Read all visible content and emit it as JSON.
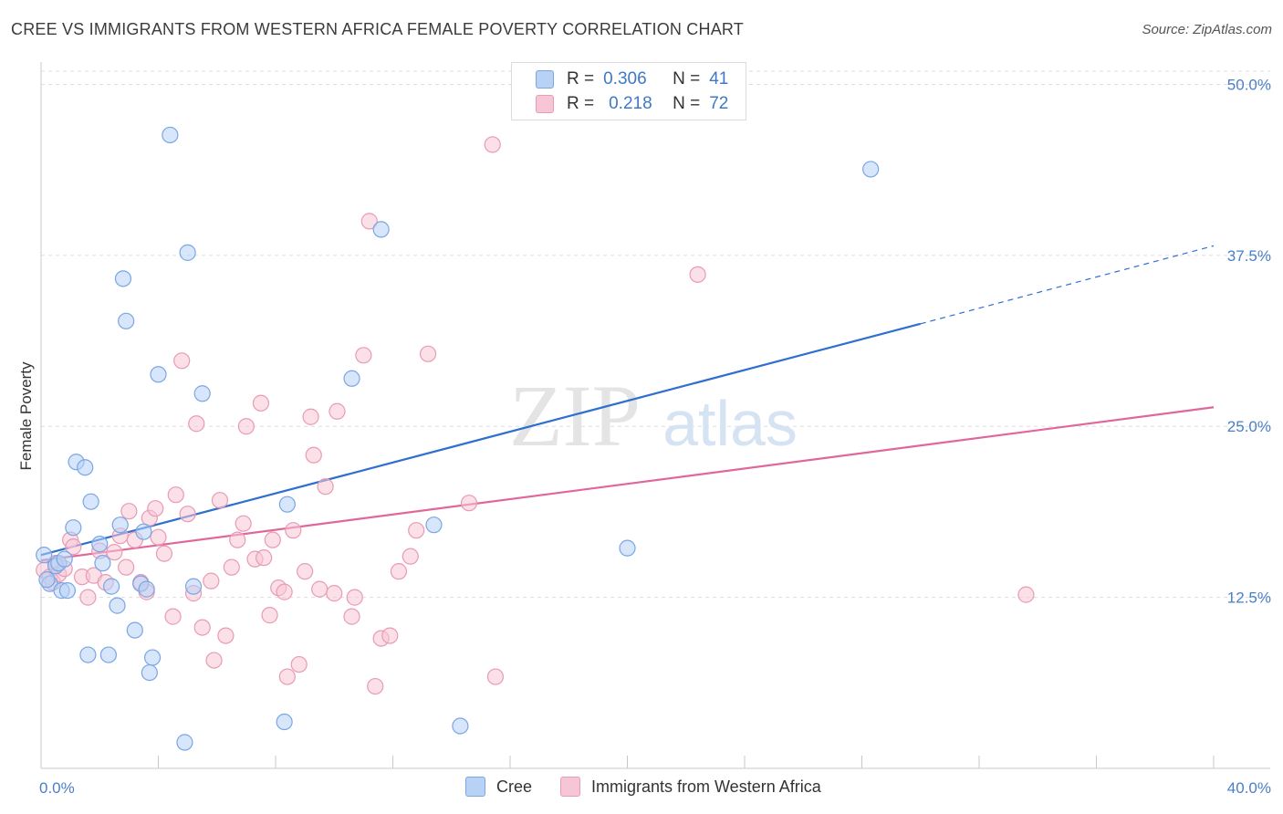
{
  "title": "CREE VS IMMIGRANTS FROM WESTERN AFRICA FEMALE POVERTY CORRELATION CHART",
  "source": "Source: ZipAtlas.com",
  "watermark": {
    "zip": "ZIP",
    "atlas": "atlas"
  },
  "legend": {
    "rows": [
      {
        "r_label": "R =",
        "r_value": "0.306",
        "n_label": "N =",
        "n_value": "41"
      },
      {
        "r_label": "R =",
        "r_value": "0.218",
        "n_label": "N =",
        "n_value": "72"
      }
    ]
  },
  "colors": {
    "cree_fill": "#b7d2f5",
    "cree_stroke": "#7aa6e3",
    "cree_line": "#2f6fcf",
    "waf_fill": "#f7c6d6",
    "waf_stroke": "#e99ab5",
    "waf_line": "#e0679a",
    "tick_text": "#4a7fc8",
    "grid": "#dddddd"
  },
  "chart_data": {
    "type": "scatter",
    "ylabel": "Female Poverty",
    "xlim": [
      0,
      40
    ],
    "ylim": [
      0,
      51.5
    ],
    "x_tick_labels": [
      "0.0%",
      "40.0%"
    ],
    "y_ticks": [
      12.5,
      25.0,
      37.5,
      50.0
    ],
    "y_tick_labels": [
      "12.5%",
      "25.0%",
      "37.5%",
      "50.0%"
    ],
    "grid": true,
    "series": [
      {
        "name": "Cree",
        "trend": {
          "x0": 0,
          "y0": 15.6,
          "x1": 30.0,
          "y1": 32.5,
          "dashed_to_x": 40,
          "dashed_to_y": 38.2
        },
        "points": [
          [
            0.1,
            15.6
          ],
          [
            0.3,
            13.5
          ],
          [
            0.5,
            14.8
          ],
          [
            0.6,
            15.0
          ],
          [
            0.7,
            13.0
          ],
          [
            0.8,
            15.3
          ],
          [
            0.9,
            13.0
          ],
          [
            1.1,
            17.6
          ],
          [
            1.2,
            22.4
          ],
          [
            1.5,
            22.0
          ],
          [
            1.7,
            19.5
          ],
          [
            2.0,
            16.4
          ],
          [
            2.1,
            15.0
          ],
          [
            2.4,
            13.3
          ],
          [
            2.6,
            11.9
          ],
          [
            2.7,
            17.8
          ],
          [
            2.8,
            35.8
          ],
          [
            2.9,
            32.7
          ],
          [
            3.2,
            10.1
          ],
          [
            3.4,
            13.5
          ],
          [
            3.5,
            17.3
          ],
          [
            3.6,
            13.1
          ],
          [
            3.8,
            8.1
          ],
          [
            4.0,
            28.8
          ],
          [
            4.4,
            46.3
          ],
          [
            4.9,
            1.9
          ],
          [
            5.0,
            37.7
          ],
          [
            5.2,
            13.3
          ],
          [
            5.5,
            27.4
          ],
          [
            1.6,
            8.3
          ],
          [
            2.3,
            8.3
          ],
          [
            3.7,
            7.0
          ],
          [
            8.3,
            3.4
          ],
          [
            8.4,
            19.3
          ],
          [
            10.6,
            28.5
          ],
          [
            11.6,
            39.4
          ],
          [
            13.4,
            17.8
          ],
          [
            14.3,
            3.1
          ],
          [
            20.0,
            16.1
          ],
          [
            28.3,
            43.8
          ],
          [
            0.2,
            13.8
          ]
        ]
      },
      {
        "name": "Immigrants from Western Africa",
        "trend": {
          "x0": 0,
          "y0": 15.2,
          "x1": 40,
          "y1": 26.4
        },
        "points": [
          [
            0.1,
            14.5
          ],
          [
            0.3,
            14.0
          ],
          [
            0.4,
            13.6
          ],
          [
            0.5,
            15.0
          ],
          [
            0.6,
            14.2
          ],
          [
            0.8,
            14.6
          ],
          [
            1.0,
            16.7
          ],
          [
            1.1,
            16.2
          ],
          [
            1.4,
            14.0
          ],
          [
            1.6,
            12.5
          ],
          [
            1.8,
            14.1
          ],
          [
            2.0,
            15.9
          ],
          [
            2.2,
            13.6
          ],
          [
            2.5,
            15.8
          ],
          [
            2.7,
            17.0
          ],
          [
            2.9,
            14.7
          ],
          [
            3.0,
            18.8
          ],
          [
            3.2,
            16.7
          ],
          [
            3.4,
            13.6
          ],
          [
            3.6,
            12.9
          ],
          [
            3.7,
            18.3
          ],
          [
            3.9,
            19.0
          ],
          [
            4.0,
            16.9
          ],
          [
            4.2,
            15.7
          ],
          [
            4.5,
            11.1
          ],
          [
            4.6,
            20.0
          ],
          [
            4.8,
            29.8
          ],
          [
            5.0,
            18.6
          ],
          [
            5.2,
            12.8
          ],
          [
            5.3,
            25.2
          ],
          [
            5.5,
            10.3
          ],
          [
            5.8,
            13.7
          ],
          [
            5.9,
            7.9
          ],
          [
            6.1,
            19.6
          ],
          [
            6.3,
            9.7
          ],
          [
            6.5,
            14.7
          ],
          [
            6.7,
            16.7
          ],
          [
            6.9,
            17.9
          ],
          [
            7.0,
            25.0
          ],
          [
            7.3,
            15.3
          ],
          [
            7.5,
            26.7
          ],
          [
            7.6,
            15.4
          ],
          [
            7.8,
            11.2
          ],
          [
            7.9,
            16.7
          ],
          [
            8.1,
            13.2
          ],
          [
            8.3,
            12.9
          ],
          [
            8.4,
            6.7
          ],
          [
            8.6,
            17.4
          ],
          [
            8.8,
            7.6
          ],
          [
            9.0,
            14.4
          ],
          [
            9.2,
            25.7
          ],
          [
            9.3,
            22.9
          ],
          [
            9.5,
            13.1
          ],
          [
            9.7,
            20.6
          ],
          [
            10.0,
            12.8
          ],
          [
            10.1,
            26.1
          ],
          [
            10.6,
            11.1
          ],
          [
            10.7,
            12.5
          ],
          [
            11.0,
            30.2
          ],
          [
            11.2,
            40.0
          ],
          [
            11.4,
            6.0
          ],
          [
            11.6,
            9.5
          ],
          [
            11.9,
            9.7
          ],
          [
            12.2,
            14.4
          ],
          [
            12.6,
            15.5
          ],
          [
            12.8,
            17.4
          ],
          [
            13.2,
            30.3
          ],
          [
            14.6,
            19.4
          ],
          [
            15.5,
            6.7
          ],
          [
            15.4,
            45.6
          ],
          [
            22.4,
            36.1
          ],
          [
            33.6,
            12.7
          ]
        ]
      }
    ]
  }
}
